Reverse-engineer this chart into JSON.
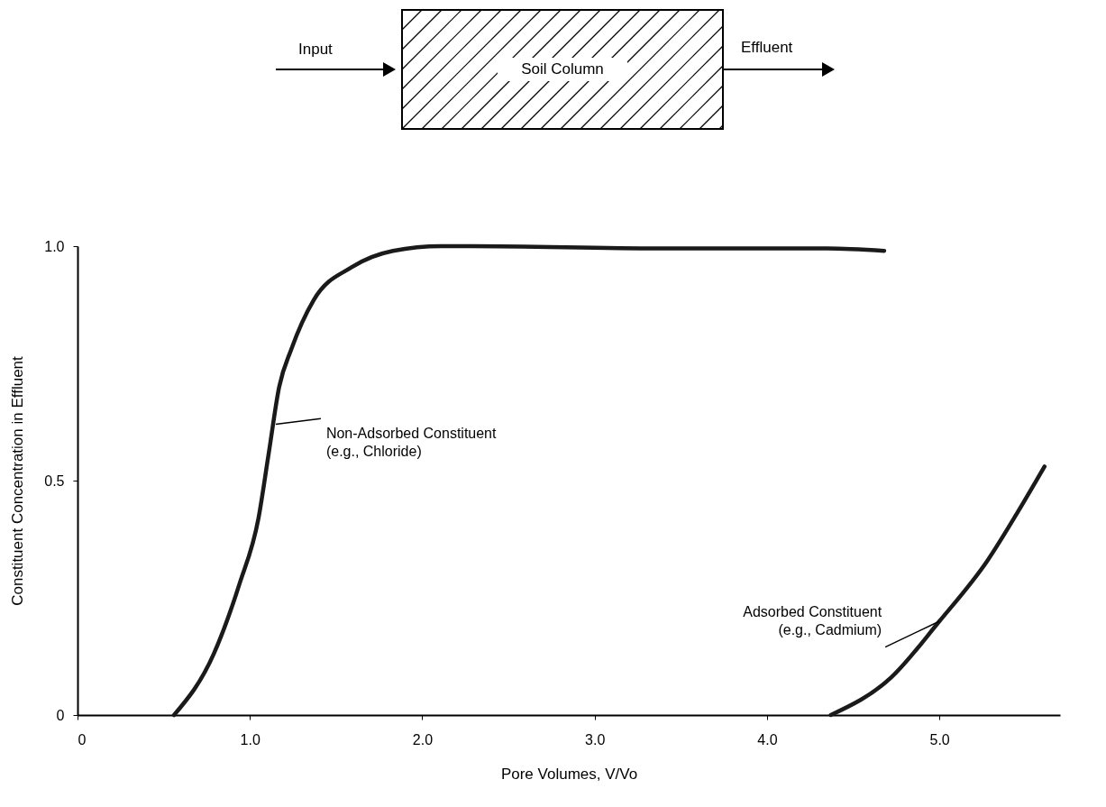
{
  "chart_data": {
    "type": "line",
    "xlabel": "Pore Volumes, V/Vo",
    "ylabel": "Constituent Concentration in Effluent",
    "xlim": [
      0,
      5.7
    ],
    "ylim": [
      0,
      1.0
    ],
    "xticks": [
      0,
      {
        "value": 1,
        "label": "1.0"
      },
      {
        "value": 2,
        "label": "2.0"
      },
      {
        "value": 3,
        "label": "3.0"
      },
      {
        "value": 4,
        "label": "4.0"
      },
      {
        "value": 5,
        "label": "5.0"
      }
    ],
    "yticks": [
      0,
      0.5,
      {
        "value": 1,
        "label": "1.0"
      }
    ],
    "grid": false,
    "marker": "none",
    "line_style": "solid",
    "series": [
      {
        "color": "#1a1a1a",
        "x": [
          0.56,
          0.79,
          0.94,
          1.05,
          1.11,
          1.17,
          1.24,
          1.37,
          1.59,
          1.83,
          2.11,
          2.29,
          3.37,
          4.35,
          4.68
        ],
        "values": [
          0,
          0.13,
          0.28,
          0.42,
          0.56,
          0.7,
          0.78,
          0.885,
          0.955,
          0.99,
          1.0,
          1.0,
          0.995,
          0.995,
          0.99
        ]
      },
      {
        "color": "#1a1a1a",
        "x": [
          4.37,
          4.72,
          5.0,
          5.28,
          5.45,
          5.61
        ],
        "values": [
          0,
          0.08,
          0.2,
          0.33,
          0.43,
          0.53
        ]
      }
    ],
    "annotations": [
      "Input",
      "Soil Column",
      "Effluent",
      {
        "text": "Non-Adsorbed Constituent\n(e.g., Chloride)",
        "x": 1.15,
        "y": 0.62
      },
      {
        "text": "Adsorbed Constituent\n(e.g., Cadmium)",
        "x": 5.0,
        "y": 0.2
      }
    ]
  }
}
